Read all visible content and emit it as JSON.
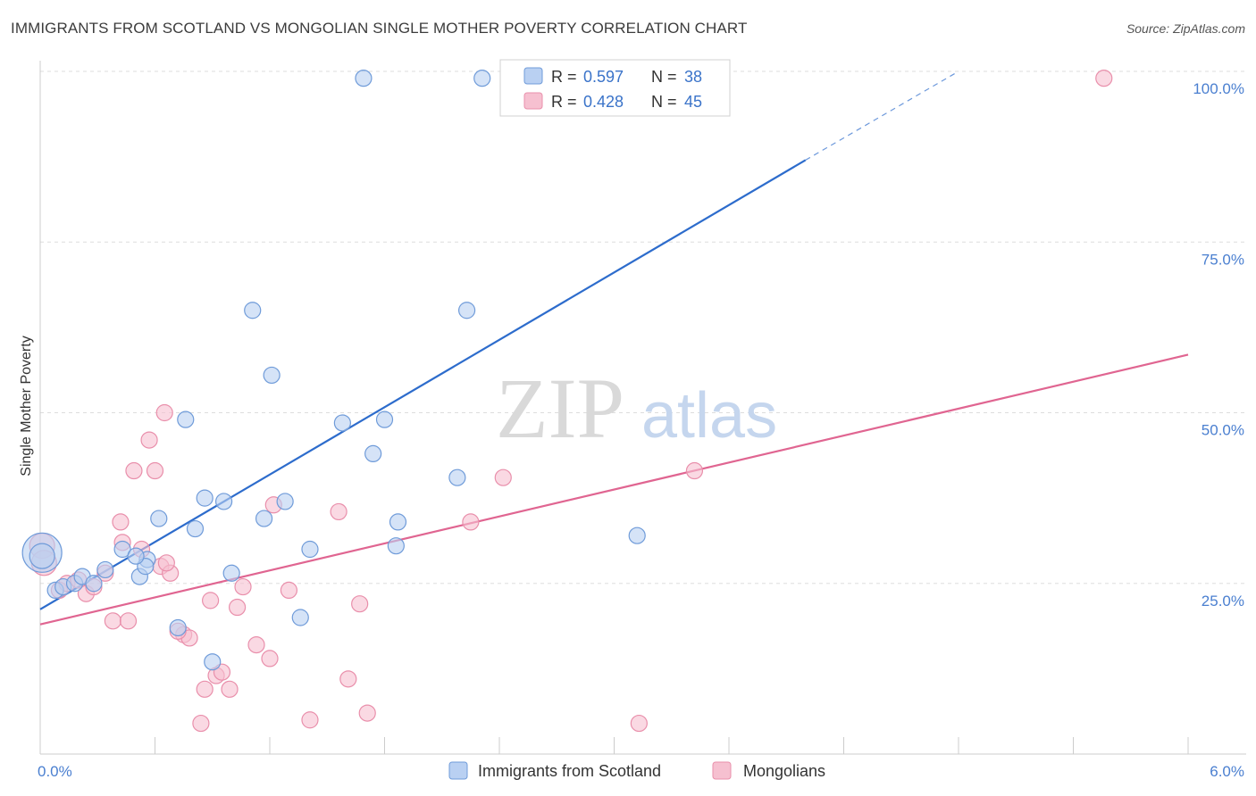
{
  "title": "IMMIGRANTS FROM SCOTLAND VS MONGOLIAN SINGLE MOTHER POVERTY CORRELATION CHART",
  "source": "Source: ZipAtlas.com",
  "watermark": {
    "zip": "ZIP",
    "atlas": "atlas"
  },
  "colors": {
    "blue_fill": "#b9d0f2",
    "blue_stroke": "#6f9bd9",
    "blue_line": "#2d6ccc",
    "pink_fill": "#f6c0d0",
    "pink_stroke": "#e98fab",
    "pink_line": "#e06591",
    "tick_text": "#4a7fd0",
    "grid": "#dddddd"
  },
  "legend": {
    "rows": [
      {
        "r_label": "R =",
        "r_value": "0.597",
        "n_label": "N =",
        "n_value": "38",
        "series": "blue"
      },
      {
        "r_label": "R =",
        "r_value": "0.428",
        "n_label": "N =",
        "n_value": "45",
        "series": "pink"
      }
    ]
  },
  "chart_data": {
    "type": "scatter",
    "title": "IMMIGRANTS FROM SCOTLAND VS MONGOLIAN SINGLE MOTHER POVERTY CORRELATION CHART",
    "xlabel": "",
    "ylabel": "Single Mother Poverty",
    "xlim": [
      0,
      6
    ],
    "ylim": [
      0,
      1.0
    ],
    "x_tick_labels": [
      "0.0%",
      "6.0%"
    ],
    "y_tick_labels": [
      "25.0%",
      "50.0%",
      "75.0%",
      "100.0%"
    ],
    "y_ticks": [
      0.25,
      0.5,
      0.75,
      1.0
    ],
    "grid": true,
    "legend_position": "bottom",
    "series": [
      {
        "name": "Immigrants from Scotland",
        "color": "#6f9bd9",
        "r": 0.597,
        "n": 38,
        "trend": {
          "x": [
            0,
            4.0
          ],
          "y": [
            0.212,
            0.87
          ],
          "dashed_to": [
            4.8,
            1.0
          ]
        },
        "points": [
          [
            0.01,
            0.295,
            22
          ],
          [
            0.01,
            0.29,
            14
          ],
          [
            0.08,
            0.24,
            9
          ],
          [
            0.12,
            0.245,
            9
          ],
          [
            0.18,
            0.25,
            9
          ],
          [
            0.22,
            0.26,
            9
          ],
          [
            0.28,
            0.25,
            9
          ],
          [
            0.34,
            0.27,
            9
          ],
          [
            0.43,
            0.3,
            9
          ],
          [
            0.52,
            0.26,
            9
          ],
          [
            0.56,
            0.285,
            9
          ],
          [
            0.62,
            0.345,
            9
          ],
          [
            0.72,
            0.185,
            9
          ],
          [
            0.76,
            0.49,
            9
          ],
          [
            0.81,
            0.33,
            9
          ],
          [
            0.86,
            0.375,
            9
          ],
          [
            0.9,
            0.135,
            9
          ],
          [
            0.96,
            0.37,
            9
          ],
          [
            1.0,
            0.265,
            9
          ],
          [
            1.11,
            0.65,
            9
          ],
          [
            1.17,
            0.345,
            9
          ],
          [
            1.21,
            0.555,
            9
          ],
          [
            1.28,
            0.37,
            9
          ],
          [
            1.36,
            0.2,
            9
          ],
          [
            1.41,
            0.3,
            9
          ],
          [
            1.58,
            0.485,
            9
          ],
          [
            1.69,
            0.99,
            9
          ],
          [
            1.74,
            0.44,
            9
          ],
          [
            1.8,
            0.49,
            9
          ],
          [
            1.86,
            0.305,
            9
          ],
          [
            1.87,
            0.34,
            9
          ],
          [
            2.18,
            0.405,
            9
          ],
          [
            2.23,
            0.65,
            9
          ],
          [
            2.31,
            0.99,
            9
          ],
          [
            2.76,
            0.99,
            9
          ],
          [
            3.12,
            0.32,
            9
          ],
          [
            0.55,
            0.275,
            9
          ],
          [
            0.5,
            0.29,
            9
          ]
        ]
      },
      {
        "name": "Mongolians",
        "color": "#e98fab",
        "r": 0.428,
        "n": 45,
        "trend": {
          "x": [
            0,
            6.0
          ],
          "y": [
            0.19,
            0.585
          ]
        },
        "points": [
          [
            0.01,
            0.305,
            14
          ],
          [
            0.02,
            0.28,
            14
          ],
          [
            0.1,
            0.24,
            9
          ],
          [
            0.14,
            0.25,
            9
          ],
          [
            0.2,
            0.255,
            9
          ],
          [
            0.24,
            0.235,
            9
          ],
          [
            0.28,
            0.245,
            9
          ],
          [
            0.34,
            0.265,
            9
          ],
          [
            0.38,
            0.195,
            9
          ],
          [
            0.42,
            0.34,
            9
          ],
          [
            0.46,
            0.195,
            9
          ],
          [
            0.49,
            0.415,
            9
          ],
          [
            0.53,
            0.3,
            9
          ],
          [
            0.57,
            0.46,
            9
          ],
          [
            0.6,
            0.415,
            9
          ],
          [
            0.63,
            0.275,
            9
          ],
          [
            0.65,
            0.5,
            9
          ],
          [
            0.68,
            0.265,
            9
          ],
          [
            0.75,
            0.175,
            9
          ],
          [
            0.78,
            0.17,
            9
          ],
          [
            0.84,
            0.045,
            9
          ],
          [
            0.86,
            0.095,
            9
          ],
          [
            0.89,
            0.225,
            9
          ],
          [
            0.92,
            0.115,
            9
          ],
          [
            0.95,
            0.12,
            9
          ],
          [
            0.99,
            0.095,
            9
          ],
          [
            1.03,
            0.215,
            9
          ],
          [
            1.06,
            0.245,
            9
          ],
          [
            1.13,
            0.16,
            9
          ],
          [
            1.2,
            0.14,
            9
          ],
          [
            1.22,
            0.365,
            9
          ],
          [
            1.3,
            0.24,
            9
          ],
          [
            1.41,
            0.05,
            9
          ],
          [
            1.56,
            0.355,
            9
          ],
          [
            1.61,
            0.11,
            9
          ],
          [
            1.67,
            0.22,
            9
          ],
          [
            1.71,
            0.06,
            9
          ],
          [
            2.25,
            0.34,
            9
          ],
          [
            2.42,
            0.405,
            9
          ],
          [
            3.13,
            0.045,
            9
          ],
          [
            3.42,
            0.415,
            9
          ],
          [
            5.56,
            0.99,
            9
          ],
          [
            0.72,
            0.18,
            9
          ],
          [
            0.66,
            0.28,
            9
          ],
          [
            0.43,
            0.31,
            9
          ]
        ]
      }
    ]
  }
}
